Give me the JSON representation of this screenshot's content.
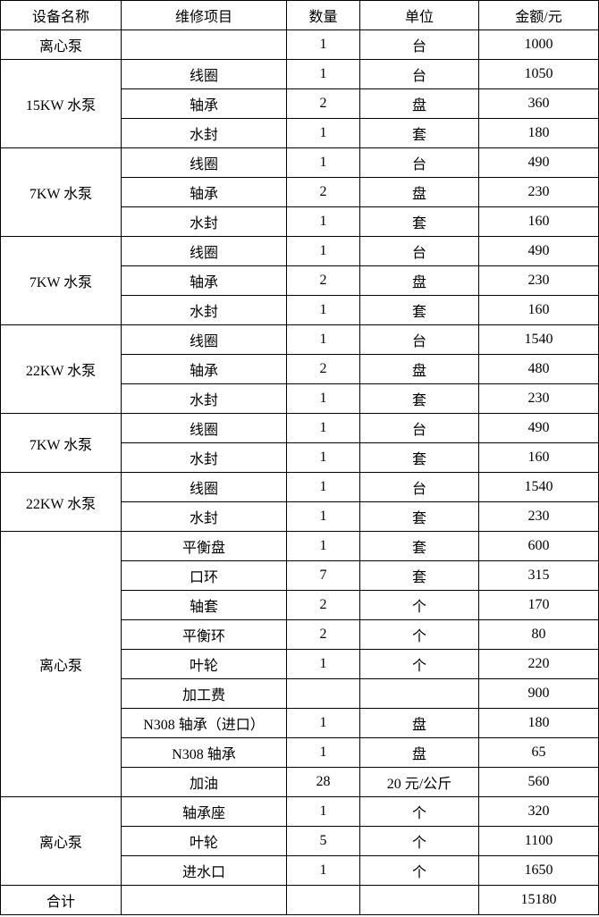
{
  "table": {
    "header": [
      "设备名称",
      "维修项目",
      "数量",
      "单位",
      "金额/元"
    ],
    "groups": [
      {
        "equipment": "离心泵",
        "items": [
          [
            null,
            1,
            "台",
            1000
          ]
        ]
      },
      {
        "equipment": "15KW 水泵",
        "items": [
          [
            "线圈",
            1,
            "台",
            1050
          ],
          [
            "轴承",
            2,
            "盘",
            360
          ],
          [
            "水封",
            1,
            "套",
            180
          ]
        ]
      },
      {
        "equipment": "7KW 水泵",
        "items": [
          [
            "线圈",
            1,
            "台",
            490
          ],
          [
            "轴承",
            2,
            "盘",
            230
          ],
          [
            "水封",
            1,
            "套",
            160
          ]
        ]
      },
      {
        "equipment": "7KW 水泵",
        "items": [
          [
            "线圈",
            1,
            "台",
            490
          ],
          [
            "轴承",
            2,
            "盘",
            230
          ],
          [
            "水封",
            1,
            "套",
            160
          ]
        ]
      },
      {
        "equipment": "22KW 水泵",
        "items": [
          [
            "线圈",
            1,
            "台",
            1540
          ],
          [
            "轴承",
            2,
            "盘",
            480
          ],
          [
            "水封",
            1,
            "套",
            230
          ]
        ]
      },
      {
        "equipment": "7KW 水泵",
        "items": [
          [
            "线圈",
            1,
            "台",
            490
          ],
          [
            "水封",
            1,
            "套",
            160
          ]
        ]
      },
      {
        "equipment": "22KW 水泵",
        "items": [
          [
            "线圈",
            1,
            "台",
            1540
          ],
          [
            "水封",
            1,
            "套",
            230
          ]
        ]
      },
      {
        "equipment": "离心泵",
        "items": [
          [
            "平衡盘",
            1,
            "套",
            600
          ],
          [
            "口环",
            7,
            "套",
            315
          ],
          [
            "轴套",
            2,
            "个",
            170
          ],
          [
            "平衡环",
            2,
            "个",
            80
          ],
          [
            "叶轮",
            1,
            "个",
            220
          ],
          [
            "加工费",
            null,
            null,
            900
          ],
          [
            "N308 轴承（进口）",
            1,
            "盘",
            180
          ],
          [
            "N308 轴承",
            1,
            "盘",
            65
          ],
          [
            "加油",
            28,
            "20 元/公斤",
            560
          ]
        ]
      },
      {
        "equipment": "离心泵",
        "items": [
          [
            "轴承座",
            1,
            "个",
            320
          ],
          [
            "叶轮",
            5,
            "个",
            1100
          ],
          [
            "进水口",
            1,
            "个",
            1650
          ]
        ]
      }
    ],
    "total": {
      "label": "合计",
      "amount": 15180
    }
  }
}
